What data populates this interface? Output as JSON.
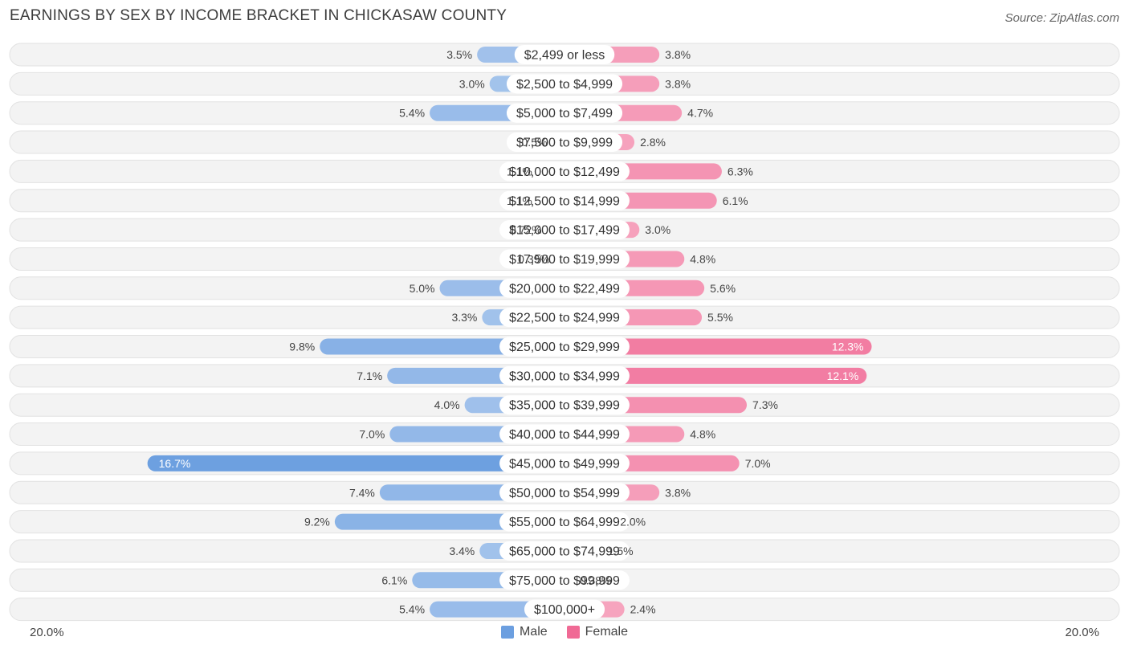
{
  "header": {
    "title": "EARNINGS BY SEX BY INCOME BRACKET IN CHICKASAW COUNTY",
    "source": "Source: ZipAtlas.com"
  },
  "axis": {
    "left_label": "20.0%",
    "right_label": "20.0%"
  },
  "legend": {
    "male": {
      "label": "Male",
      "color": "#6c9fe0"
    },
    "female": {
      "label": "Female",
      "color": "#f06a95"
    }
  },
  "chart_data": {
    "type": "bar",
    "orientation": "horizontal-diverging",
    "title": "EARNINGS BY SEX BY INCOME BRACKET IN CHICKASAW COUNTY",
    "xlim": [
      -20,
      20
    ],
    "categories": [
      "$2,499 or less",
      "$2,500 to $4,999",
      "$5,000 to $7,499",
      "$7,500 to $9,999",
      "$10,000 to $12,499",
      "$12,500 to $14,999",
      "$15,000 to $17,499",
      "$17,500 to $19,999",
      "$20,000 to $22,499",
      "$22,500 to $24,999",
      "$25,000 to $29,999",
      "$30,000 to $34,999",
      "$35,000 to $39,999",
      "$40,000 to $44,999",
      "$45,000 to $49,999",
      "$50,000 to $54,999",
      "$55,000 to $64,999",
      "$65,000 to $74,999",
      "$75,000 to $99,999",
      "$100,000+"
    ],
    "series": [
      {
        "name": "Male",
        "values": [
          3.5,
          3.0,
          5.4,
          0.5,
          1.1,
          1.1,
          0.72,
          0.39,
          5.0,
          3.3,
          9.8,
          7.1,
          4.0,
          7.0,
          16.7,
          7.4,
          9.2,
          3.4,
          6.1,
          5.4
        ],
        "labels": [
          "3.5%",
          "3.0%",
          "5.4%",
          "0.5%",
          "1.1%",
          "1.1%",
          "0.72%",
          "0.39%",
          "5.0%",
          "3.3%",
          "9.8%",
          "7.1%",
          "4.0%",
          "7.0%",
          "16.7%",
          "7.4%",
          "9.2%",
          "3.4%",
          "6.1%",
          "5.4%"
        ]
      },
      {
        "name": "Female",
        "values": [
          3.8,
          3.8,
          4.7,
          2.8,
          6.3,
          6.1,
          3.0,
          4.8,
          5.6,
          5.5,
          12.3,
          12.1,
          7.3,
          4.8,
          7.0,
          3.8,
          2.0,
          1.5,
          0.38,
          2.4
        ],
        "labels": [
          "3.8%",
          "3.8%",
          "4.7%",
          "2.8%",
          "6.3%",
          "6.1%",
          "3.0%",
          "4.8%",
          "5.6%",
          "5.5%",
          "12.3%",
          "12.1%",
          "7.3%",
          "4.8%",
          "7.0%",
          "3.8%",
          "2.0%",
          "1.5%",
          "0.38%",
          "2.4%"
        ]
      }
    ]
  }
}
